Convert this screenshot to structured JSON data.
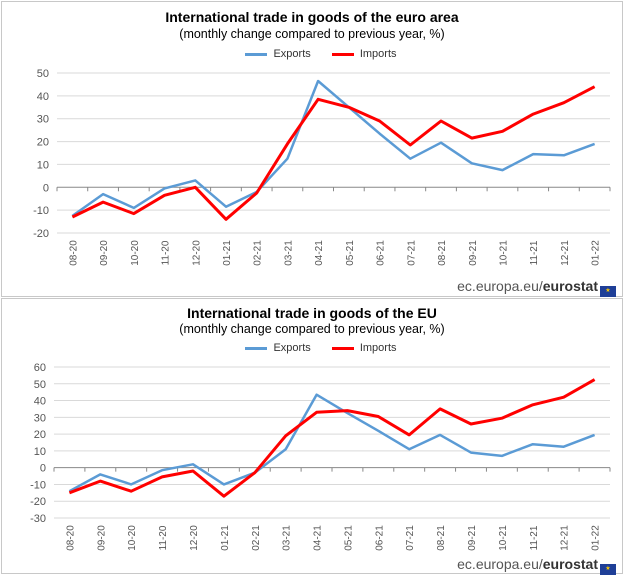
{
  "footer": {
    "site": "ec.europa.eu/",
    "brand": "eurostat"
  },
  "colors": {
    "exports": "#5b9bd5",
    "imports": "#ff0000",
    "grid": "#d9d9d9"
  },
  "chart_data": [
    {
      "type": "line",
      "title": "International trade in goods of the euro area",
      "subtitle": "(monthly change compared to previous year, %)",
      "categories": [
        "08-20",
        "09-20",
        "10-20",
        "11-20",
        "12-20",
        "01-21",
        "02-21",
        "03-21",
        "04-21",
        "05-21",
        "06-21",
        "07-21",
        "08-21",
        "09-21",
        "10-21",
        "11-21",
        "12-21",
        "01-22"
      ],
      "ylim": [
        -20,
        50
      ],
      "yticks": [
        -20,
        -10,
        0,
        10,
        20,
        30,
        40,
        50
      ],
      "grid": true,
      "legend": "top",
      "series": [
        {
          "name": "Exports",
          "values": [
            -12.5,
            -3,
            -9,
            -0.5,
            3,
            -8.5,
            -2,
            12.5,
            46.5,
            35,
            23.5,
            12.5,
            19.5,
            10.5,
            7.5,
            14.5,
            14,
            19
          ]
        },
        {
          "name": "Imports",
          "values": [
            -13,
            -6.5,
            -11.5,
            -3.5,
            0,
            -14,
            -2.5,
            19,
            38.5,
            35,
            29,
            18.5,
            29,
            21.5,
            24.5,
            32,
            37,
            44
          ]
        }
      ]
    },
    {
      "type": "line",
      "title": "International trade in goods of the EU",
      "subtitle": "(monthly change compared to previous year, %)",
      "categories": [
        "08-20",
        "09-20",
        "10-20",
        "11-20",
        "12-20",
        "01-21",
        "02-21",
        "03-21",
        "04-21",
        "05-21",
        "06-21",
        "07-21",
        "08-21",
        "09-21",
        "10-21",
        "11-21",
        "12-21",
        "01-22"
      ],
      "ylim": [
        -30,
        60
      ],
      "yticks": [
        -30,
        -20,
        -10,
        0,
        10,
        20,
        30,
        40,
        50,
        60
      ],
      "grid": true,
      "legend": "top",
      "series": [
        {
          "name": "Exports",
          "values": [
            -14,
            -4,
            -10,
            -1.5,
            2,
            -10,
            -3,
            11,
            43.5,
            32.5,
            22,
            11,
            19.5,
            9,
            7,
            14,
            12.5,
            19.5
          ]
        },
        {
          "name": "Imports",
          "values": [
            -15,
            -8,
            -14,
            -5.5,
            -2,
            -17,
            -3,
            19,
            33,
            34,
            30.5,
            19.5,
            35,
            26,
            29.5,
            37.5,
            42,
            52.5
          ]
        }
      ]
    }
  ]
}
